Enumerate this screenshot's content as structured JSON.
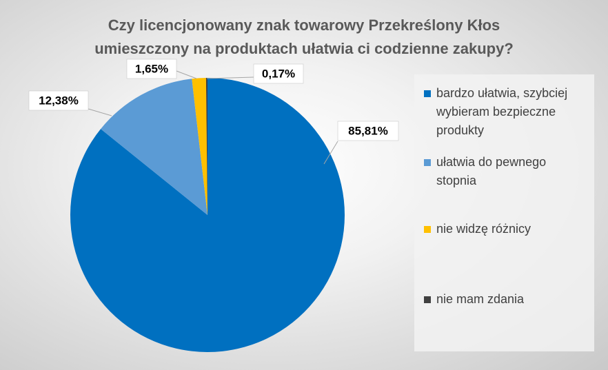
{
  "chart_data": {
    "type": "pie",
    "title": "Czy licencjonowany znak towarowy Przekreślony Kłos umieszczony na produktach ułatwia ci codzienne zakupy?",
    "categories": [
      "bardzo ułatwia, szybciej wybieram bezpieczne produkty",
      "ułatwia do pewnego stopnia",
      "nie widzę różnicy",
      "nie mam zdania"
    ],
    "values": [
      85.81,
      12.38,
      1.65,
      0.17
    ],
    "value_labels": [
      "85,81%",
      "12,38%",
      "1,65%",
      "0,17%"
    ],
    "colors": [
      "#0070c0",
      "#5b9bd5",
      "#ffc000",
      "#404040"
    ],
    "legend": "right"
  }
}
